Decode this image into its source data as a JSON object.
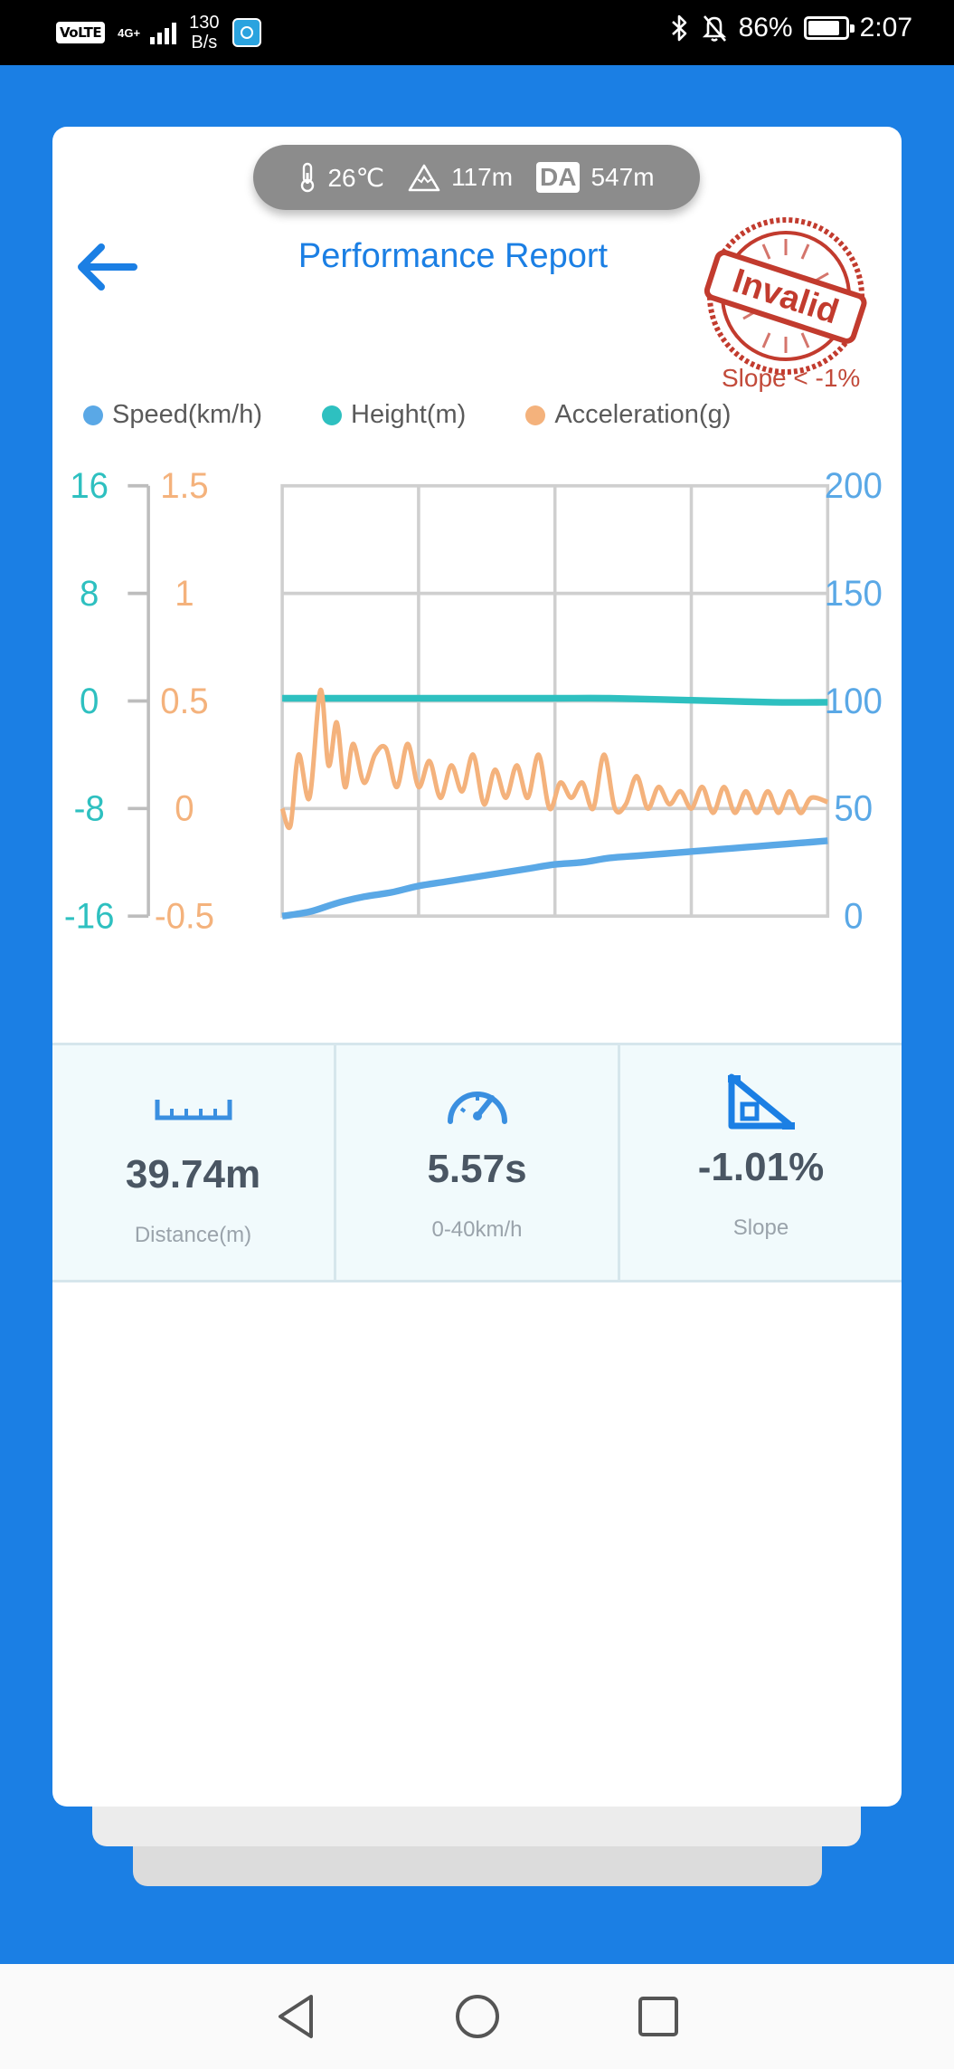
{
  "status_bar": {
    "network_badge": "VoLTE",
    "network_type": "4G+",
    "data_rate": "130",
    "data_rate_unit": "B/s",
    "battery": "86%",
    "time": "2:07"
  },
  "environment": {
    "temperature": "26℃",
    "altitude": "117m",
    "da_label": "DA",
    "density_altitude": "547m"
  },
  "header": {
    "title": "Performance Report",
    "stamp_text": "Invalid",
    "stamp_note": "Slope < -1%"
  },
  "colors": {
    "speed": "#5aa8e6",
    "height": "#2ec0c0",
    "acceleration": "#f4b27c",
    "accent": "#1b7fe4",
    "stamp": "#c23b2e"
  },
  "chart_data": {
    "type": "line",
    "legend": [
      {
        "name": "Speed(km/h)",
        "color": "#5aa8e6"
      },
      {
        "name": "Height(m)",
        "color": "#2ec0c0"
      },
      {
        "name": "Acceleration(g)",
        "color": "#f4b27c"
      }
    ],
    "axes": {
      "height_axis": {
        "ticks": [
          "16",
          "8",
          "0",
          "-8",
          "-16"
        ],
        "range": [
          -16,
          16
        ]
      },
      "acceleration_axis": {
        "ticks": [
          "1.5",
          "1",
          "0.5",
          "0",
          "-0.5"
        ],
        "range": [
          -0.5,
          1.5
        ]
      },
      "speed_axis": {
        "ticks": [
          "200",
          "150",
          "100",
          "50",
          "0"
        ],
        "range": [
          0,
          200
        ]
      }
    },
    "grid": true,
    "x_range": [
      0,
      100
    ],
    "series": [
      {
        "name": "Speed(km/h)",
        "axis": "speed",
        "x": [
          0,
          5,
          10,
          15,
          20,
          25,
          30,
          35,
          40,
          45,
          50,
          55,
          60,
          65,
          70,
          75,
          80,
          85,
          90,
          95,
          100
        ],
        "values": [
          0,
          2,
          6,
          9,
          11,
          14,
          16,
          18,
          20,
          22,
          24,
          25,
          27,
          28,
          29,
          30,
          31,
          32,
          33,
          34,
          35
        ]
      },
      {
        "name": "Height(m)",
        "axis": "height",
        "x": [
          0,
          10,
          20,
          30,
          40,
          50,
          60,
          70,
          80,
          90,
          100
        ],
        "values": [
          0.2,
          0.2,
          0.2,
          0.2,
          0.2,
          0.2,
          0.2,
          0.1,
          0,
          -0.1,
          -0.1
        ]
      },
      {
        "name": "Acceleration(g)",
        "axis": "acceleration",
        "x": [
          0,
          1.5,
          3,
          5,
          7,
          8.5,
          10,
          11.5,
          13,
          15,
          17,
          19,
          21,
          23,
          25,
          27,
          29,
          31,
          33,
          35,
          37,
          39,
          41,
          43,
          45,
          47,
          49,
          51,
          53,
          55,
          57,
          59,
          61,
          63,
          65,
          67,
          69,
          71,
          73,
          75,
          77,
          79,
          81,
          83,
          85,
          87,
          89,
          91,
          93,
          95,
          97,
          100
        ],
        "values": [
          0,
          -0.08,
          0.25,
          0.05,
          0.55,
          0.2,
          0.4,
          0.1,
          0.3,
          0.12,
          0.25,
          0.28,
          0.1,
          0.3,
          0.1,
          0.22,
          0.05,
          0.2,
          0.08,
          0.25,
          0.02,
          0.18,
          0.05,
          0.2,
          0.05,
          0.25,
          0.0,
          0.12,
          0.05,
          0.12,
          0.0,
          0.25,
          0.0,
          0.02,
          0.15,
          0.0,
          0.1,
          0.02,
          0.08,
          0.0,
          0.1,
          -0.02,
          0.1,
          -0.02,
          0.08,
          -0.02,
          0.08,
          -0.02,
          0.08,
          -0.02,
          0.05,
          0.03
        ]
      }
    ]
  },
  "stats": [
    {
      "icon": "ruler-icon",
      "value": "39.74m",
      "label": "Distance(m)"
    },
    {
      "icon": "speedometer-icon",
      "value": "5.57s",
      "label": "0-40km/h"
    },
    {
      "icon": "slope-icon",
      "value": "-1.01%",
      "label": "Slope"
    }
  ]
}
